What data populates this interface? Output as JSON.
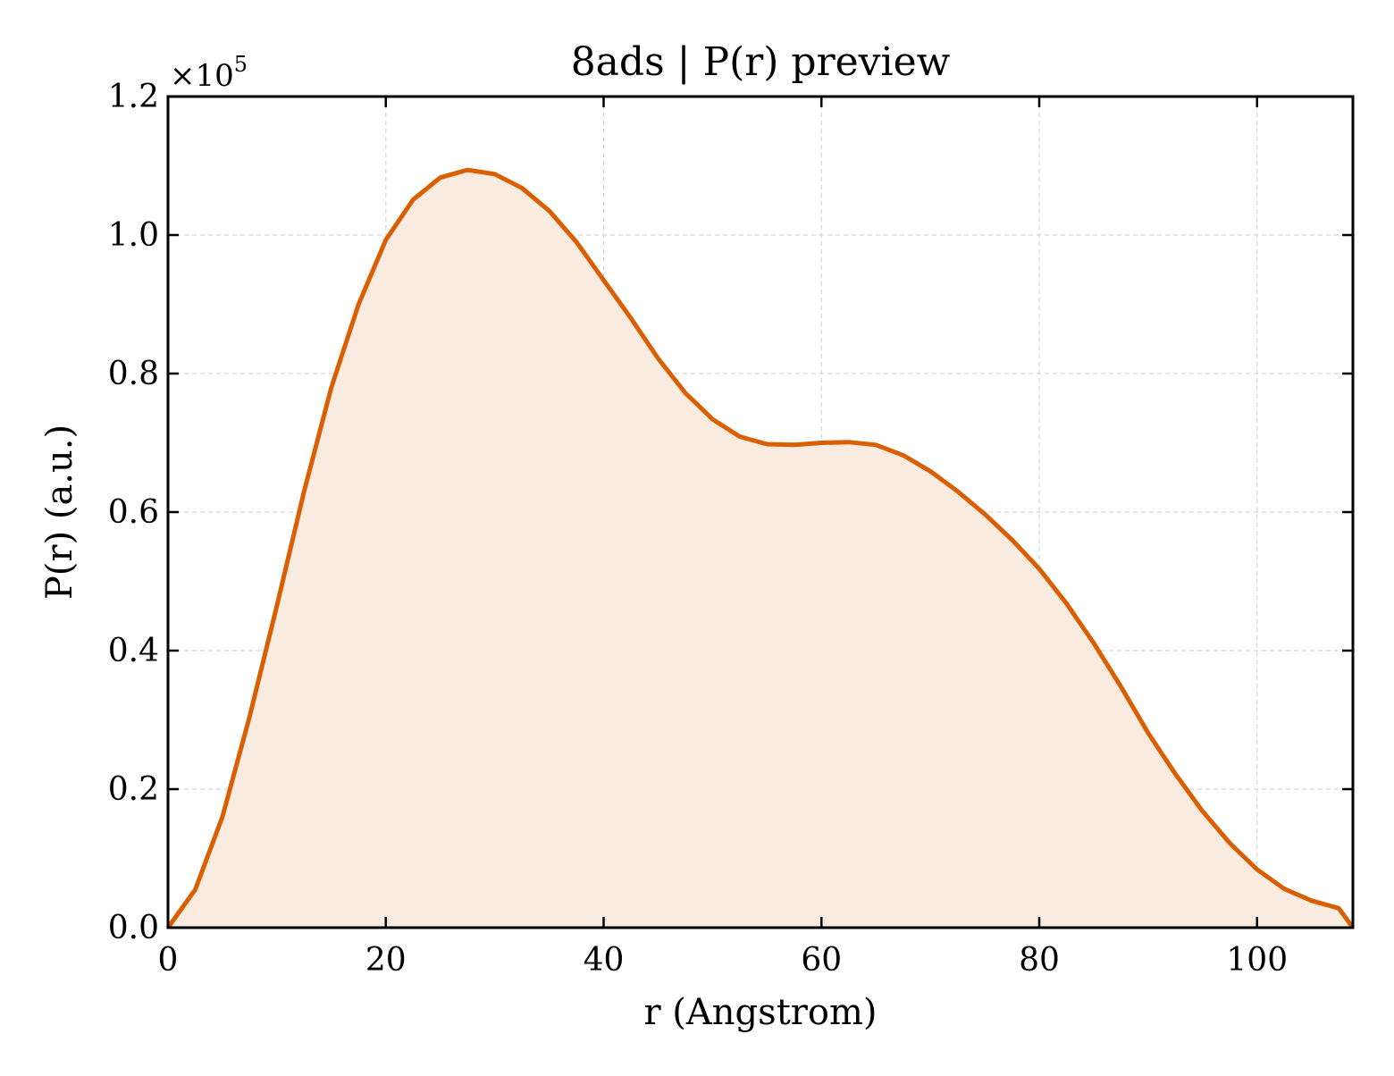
{
  "chart_data": {
    "type": "area",
    "title": "8ads | P(r) preview",
    "xlabel": "r (Angstrom)",
    "ylabel": "P(r) (a.u.)",
    "y_offset_text": "×10",
    "y_offset_exponent": "5",
    "xlim": [
      0,
      108.8
    ],
    "ylim": [
      0,
      1.2
    ],
    "xticks": [
      0,
      20,
      40,
      60,
      80,
      100
    ],
    "xtick_labels": [
      "0",
      "20",
      "40",
      "60",
      "80",
      "100"
    ],
    "yticks": [
      0,
      0.2,
      0.4,
      0.6,
      0.8,
      1.0,
      1.2
    ],
    "ytick_labels": [
      "0.0",
      "0.2",
      "0.4",
      "0.6",
      "0.8",
      "1.0",
      "1.2"
    ],
    "grid": true,
    "line_color": "#d95f02",
    "fill_color": "#f9ebe0",
    "series": [
      {
        "x": [
          0,
          2.5,
          5.0,
          7.5,
          10.0,
          12.5,
          15.0,
          17.5,
          20.0,
          22.5,
          25.0,
          27.5,
          30.0,
          32.5,
          35.0,
          37.5,
          40.0,
          42.5,
          45.0,
          47.5,
          50.0,
          52.5,
          55.0,
          57.5,
          60.0,
          62.5,
          65.0,
          67.5,
          70.0,
          72.5,
          75.0,
          77.5,
          80.0,
          82.5,
          85.0,
          87.5,
          90.0,
          92.5,
          95.0,
          97.5,
          100.0,
          102.5,
          105.0,
          107.5,
          108.8
        ],
        "y": [
          0.0,
          0.055,
          0.16,
          0.305,
          0.465,
          0.63,
          0.78,
          0.9,
          0.993,
          1.051,
          1.083,
          1.094,
          1.088,
          1.068,
          1.035,
          0.99,
          0.935,
          0.88,
          0.822,
          0.772,
          0.734,
          0.709,
          0.698,
          0.697,
          0.7,
          0.701,
          0.697,
          0.682,
          0.659,
          0.63,
          0.597,
          0.56,
          0.518,
          0.468,
          0.411,
          0.348,
          0.281,
          0.222,
          0.168,
          0.122,
          0.084,
          0.056,
          0.039,
          0.028,
          0.0
        ]
      }
    ]
  }
}
